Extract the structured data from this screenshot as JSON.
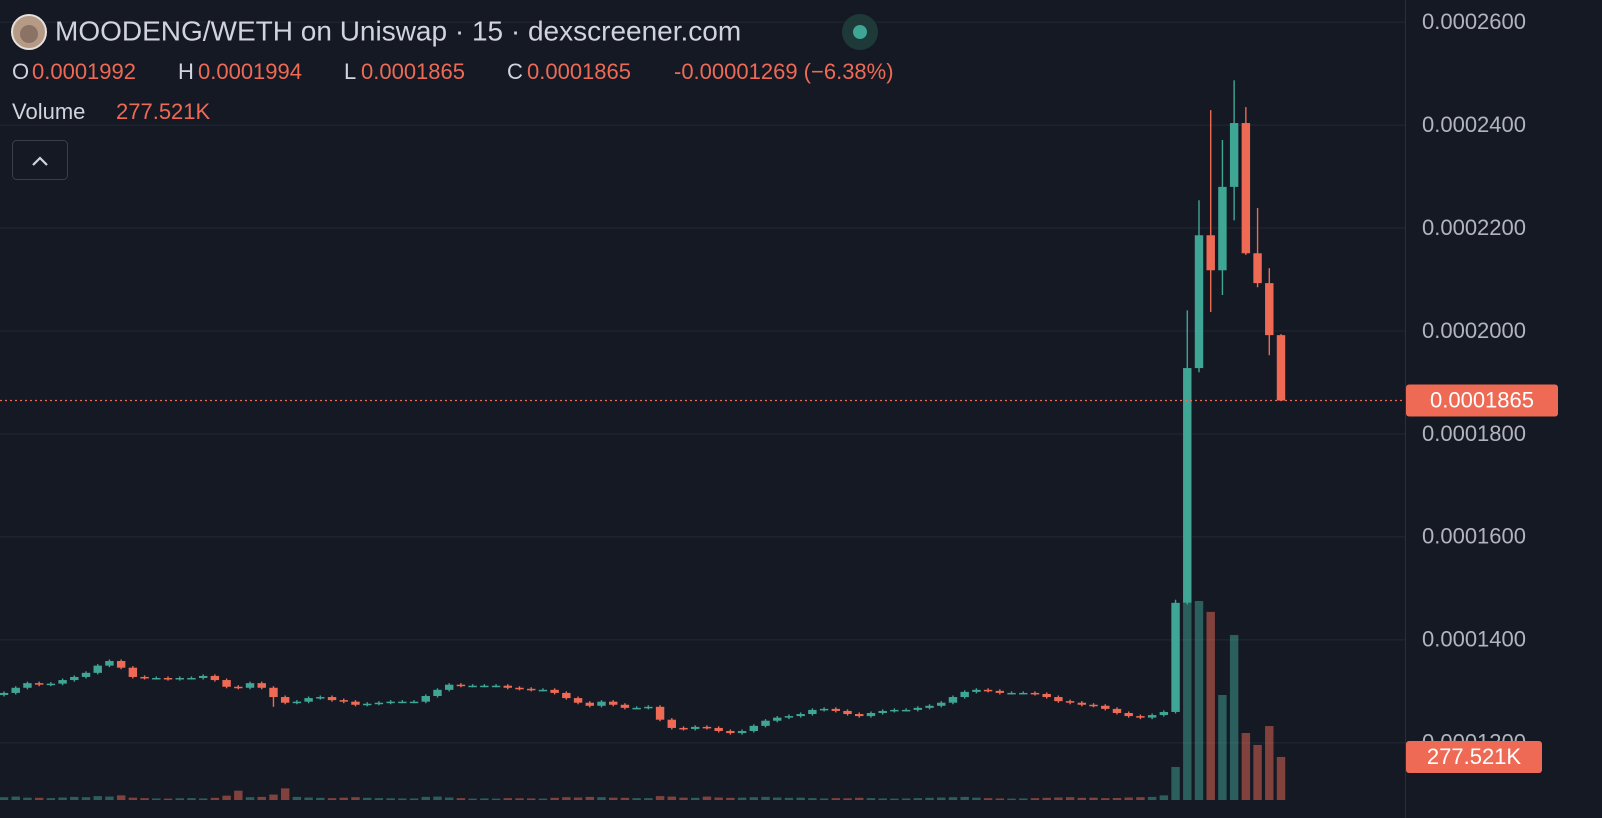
{
  "chart_data": {
    "type": "candlestick",
    "title": "MOODENG/WETH on Uniswap · 15 · dexscreener.com",
    "legend_labels": [
      "O",
      "H",
      "L",
      "C"
    ],
    "change": "-0.00001269 (−6.38%)",
    "up_color": "#3fa595",
    "down_color": "#ee6a55",
    "grid": true,
    "ylim": [
      0.0001089,
      0.0002643
    ],
    "yticks": [
      {
        "value": 0.00012,
        "label": "0.0001200"
      },
      {
        "value": 0.00014,
        "label": "0.0001400"
      },
      {
        "value": 0.00016,
        "label": "0.0001600"
      },
      {
        "value": 0.00018,
        "label": "0.0001800"
      },
      {
        "value": 0.0002,
        "label": "0.0002000"
      },
      {
        "value": 0.00022,
        "label": "0.0002200"
      },
      {
        "value": 0.00024,
        "label": "0.0002400"
      },
      {
        "value": 0.00026,
        "label": "0.0002600"
      }
    ],
    "open": [
      0.0001293,
      0.0001297,
      0.0001307,
      0.0001316,
      0.0001313,
      0.0001315,
      0.0001322,
      0.0001328,
      0.0001336,
      0.000135,
      0.0001359,
      0.0001346,
      0.0001328,
      0.0001326,
      0.0001326,
      0.0001324,
      0.0001326,
      0.0001326,
      0.000133,
      0.0001322,
      0.0001309,
      0.0001307,
      0.0001316,
      0.0001307,
      0.0001289,
      0.0001278,
      0.000128,
      0.0001287,
      0.0001289,
      0.0001283,
      0.000128,
      0.0001274,
      0.0001276,
      0.0001278,
      0.000128,
      0.000128,
      0.000128,
      0.0001291,
      0.0001303,
      0.0001313,
      0.0001311,
      0.0001311,
      0.0001311,
      0.0001311,
      0.0001307,
      0.0001305,
      0.0001303,
      0.0001303,
      0.0001297,
      0.0001287,
      0.0001278,
      0.0001272,
      0.000128,
      0.0001274,
      0.0001268,
      0.0001268,
      0.000127,
      0.0001245,
      0.0001229,
      0.0001227,
      0.0001231,
      0.0001229,
      0.0001223,
      0.0001219,
      0.0001223,
      0.0001233,
      0.0001243,
      0.0001249,
      0.0001252,
      0.0001256,
      0.0001264,
      0.0001266,
      0.0001262,
      0.0001256,
      0.0001252,
      0.0001258,
      0.0001262,
      0.0001264,
      0.0001264,
      0.0001268,
      0.0001272,
      0.0001278,
      0.0001289,
      0.0001299,
      0.0001303,
      0.0001301,
      0.0001297,
      0.0001297,
      0.0001297,
      0.0001295,
      0.0001289,
      0.0001281,
      0.0001278,
      0.0001274,
      0.0001272,
      0.0001266,
      0.0001258,
      0.0001252,
      0.0001249,
      0.0001254,
      0.000126,
      0.0001472,
      0.0001928,
      0.0002186,
      0.0002118,
      0.000228,
      0.0002404,
      0.0002151,
      0.0002093,
      0.0001992
    ],
    "high": [
      0.00013,
      0.000131,
      0.0001319,
      0.0001319,
      0.0001318,
      0.0001325,
      0.0001331,
      0.0001339,
      0.0001353,
      0.0001362,
      0.0001362,
      0.0001349,
      0.0001331,
      0.0001329,
      0.0001329,
      0.0001329,
      0.0001329,
      0.0001333,
      0.0001333,
      0.0001325,
      0.0001312,
      0.0001319,
      0.0001319,
      0.000131,
      0.0001292,
      0.0001283,
      0.000129,
      0.0001292,
      0.0001292,
      0.0001286,
      0.0001283,
      0.0001279,
      0.0001281,
      0.0001283,
      0.0001283,
      0.0001283,
      0.0001294,
      0.0001306,
      0.0001316,
      0.0001316,
      0.0001314,
      0.0001314,
      0.0001314,
      0.0001314,
      0.000131,
      0.0001308,
      0.0001306,
      0.0001306,
      0.00013,
      0.000129,
      0.0001281,
      0.0001283,
      0.0001283,
      0.0001277,
      0.0001271,
      0.0001273,
      0.0001273,
      0.0001248,
      0.0001232,
      0.0001234,
      0.0001234,
      0.0001232,
      0.0001226,
      0.0001226,
      0.0001236,
      0.0001246,
      0.0001252,
      0.0001255,
      0.0001259,
      0.0001267,
      0.0001269,
      0.0001269,
      0.0001265,
      0.0001259,
      0.0001261,
      0.0001265,
      0.0001267,
      0.0001267,
      0.0001271,
      0.0001275,
      0.0001281,
      0.0001292,
      0.0001302,
      0.0001306,
      0.0001306,
      0.0001304,
      0.00013,
      0.00013,
      0.00013,
      0.0001298,
      0.0001292,
      0.0001284,
      0.0001281,
      0.0001277,
      0.0001275,
      0.0001269,
      0.0001261,
      0.0001255,
      0.0001257,
      0.0001263,
      0.0001478,
      0.000204,
      0.0002254,
      0.0002429,
      0.0002371,
      0.0002487,
      0.0002435,
      0.0002239,
      0.0002122,
      0.0001994
    ],
    "low": [
      0.000129,
      0.0001294,
      0.0001304,
      0.000131,
      0.000131,
      0.0001312,
      0.0001319,
      0.0001325,
      0.0001333,
      0.0001347,
      0.0001343,
      0.0001325,
      0.0001323,
      0.0001323,
      0.0001321,
      0.0001321,
      0.0001323,
      0.0001323,
      0.0001319,
      0.0001306,
      0.0001304,
      0.0001304,
      0.0001304,
      0.000127,
      0.0001275,
      0.0001275,
      0.0001277,
      0.0001284,
      0.000128,
      0.0001277,
      0.0001271,
      0.0001271,
      0.0001273,
      0.0001275,
      0.0001277,
      0.0001277,
      0.0001277,
      0.0001288,
      0.00013,
      0.0001308,
      0.0001308,
      0.0001308,
      0.0001308,
      0.0001304,
      0.0001302,
      0.00013,
      0.00013,
      0.0001294,
      0.0001284,
      0.0001275,
      0.0001269,
      0.0001269,
      0.0001271,
      0.0001265,
      0.0001265,
      0.0001265,
      0.0001242,
      0.0001226,
      0.0001224,
      0.0001224,
      0.0001226,
      0.000122,
      0.0001216,
      0.0001216,
      0.000122,
      0.000123,
      0.000124,
      0.0001246,
      0.0001249,
      0.0001253,
      0.0001261,
      0.0001259,
      0.0001253,
      0.0001249,
      0.0001249,
      0.0001255,
      0.0001259,
      0.0001261,
      0.0001261,
      0.0001265,
      0.0001269,
      0.0001275,
      0.0001286,
      0.0001296,
      0.0001298,
      0.0001294,
      0.0001294,
      0.0001294,
      0.0001292,
      0.0001286,
      0.0001278,
      0.0001275,
      0.0001271,
      0.0001269,
      0.0001263,
      0.0001255,
      0.0001249,
      0.0001246,
      0.0001246,
      0.0001251,
      0.0001257,
      0.0001469,
      0.000192,
      0.0002037,
      0.000207,
      0.0002215,
      0.0002148,
      0.0002085,
      0.0001953,
      0.0001865
    ],
    "close": [
      0.0001297,
      0.0001307,
      0.0001316,
      0.0001313,
      0.0001315,
      0.0001322,
      0.0001328,
      0.0001336,
      0.000135,
      0.0001359,
      0.0001346,
      0.0001328,
      0.0001326,
      0.0001326,
      0.0001324,
      0.0001326,
      0.0001326,
      0.000133,
      0.0001322,
      0.0001309,
      0.0001307,
      0.0001316,
      0.0001307,
      0.0001289,
      0.0001278,
      0.000128,
      0.0001287,
      0.0001289,
      0.0001283,
      0.000128,
      0.0001274,
      0.0001276,
      0.0001278,
      0.000128,
      0.000128,
      0.000128,
      0.0001291,
      0.0001303,
      0.0001313,
      0.0001311,
      0.0001311,
      0.0001311,
      0.0001311,
      0.0001307,
      0.0001305,
      0.0001303,
      0.0001303,
      0.0001297,
      0.0001287,
      0.0001278,
      0.0001272,
      0.000128,
      0.0001274,
      0.0001268,
      0.0001268,
      0.000127,
      0.0001245,
      0.0001229,
      0.0001227,
      0.0001231,
      0.0001229,
      0.0001223,
      0.0001219,
      0.0001223,
      0.0001233,
      0.0001243,
      0.0001249,
      0.0001252,
      0.0001256,
      0.0001264,
      0.0001266,
      0.0001262,
      0.0001256,
      0.0001252,
      0.0001258,
      0.0001262,
      0.0001264,
      0.0001264,
      0.0001268,
      0.0001272,
      0.0001278,
      0.0001289,
      0.0001299,
      0.0001303,
      0.0001301,
      0.0001297,
      0.0001297,
      0.0001297,
      0.0001295,
      0.0001289,
      0.0001281,
      0.0001278,
      0.0001274,
      0.0001272,
      0.0001266,
      0.0001258,
      0.0001252,
      0.0001249,
      0.0001254,
      0.000126,
      0.0001472,
      0.0001928,
      0.0002186,
      0.0002118,
      0.000228,
      0.0002404,
      0.0002151,
      0.0002093,
      0.0001992,
      0.0001865
    ],
    "volume": {
      "name": "Volume",
      "values": [
        18000,
        22000,
        15000,
        14000,
        12000,
        16000,
        20000,
        18000,
        25000,
        22000,
        30000,
        15000,
        12000,
        10000,
        9000,
        11000,
        12000,
        10000,
        14000,
        28000,
        60000,
        18000,
        20000,
        35000,
        75000,
        20000,
        16000,
        14000,
        12000,
        15000,
        18000,
        14000,
        12000,
        11000,
        10000,
        10000,
        20000,
        22000,
        16000,
        12000,
        9000,
        10000,
        9000,
        12000,
        11000,
        10000,
        9000,
        14000,
        18000,
        16000,
        20000,
        18000,
        15000,
        14000,
        12000,
        12000,
        25000,
        22000,
        15000,
        14000,
        22000,
        16000,
        14000,
        15000,
        18000,
        20000,
        16000,
        14000,
        15000,
        12000,
        10000,
        12000,
        11000,
        14000,
        12000,
        10000,
        9000,
        10000,
        12000,
        14000,
        16000,
        18000,
        20000,
        15000,
        12000,
        10000,
        9000,
        10000,
        12000,
        14000,
        16000,
        18000,
        14000,
        15000,
        12000,
        13000,
        16000,
        18000,
        20000,
        30000,
        213000,
        1270000,
        1283000,
        1213000,
        677000,
        1064000,
        432000,
        355000,
        477000,
        277521
      ],
      "value_labels": [
        null,
        null,
        null,
        null,
        null,
        null,
        null,
        null,
        null,
        null,
        null,
        null,
        null,
        null,
        null,
        null,
        null,
        null,
        null,
        null,
        null,
        null,
        null,
        null,
        null,
        null,
        null,
        null,
        null,
        null,
        null,
        null,
        null,
        null,
        null,
        null,
        null,
        null,
        null,
        null,
        null,
        null,
        null,
        null,
        null,
        null,
        null,
        null,
        null,
        null,
        null,
        null,
        null,
        null,
        null,
        null,
        null,
        null,
        null,
        null,
        null,
        null,
        null,
        null,
        null,
        null,
        null,
        null,
        null,
        null,
        null,
        null,
        null,
        null,
        null,
        null,
        null,
        null,
        null,
        null,
        null,
        null,
        null,
        null,
        null,
        null,
        null,
        null,
        null,
        null,
        null,
        null,
        null,
        null,
        null,
        null,
        null,
        null,
        null,
        null,
        null,
        null,
        null,
        null,
        null,
        null,
        null,
        null,
        null,
        "277.521K"
      ]
    }
  }
}
